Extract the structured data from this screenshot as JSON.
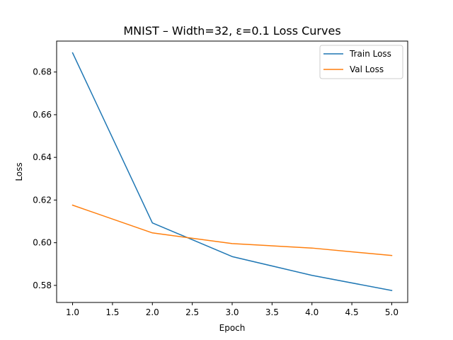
{
  "chart_data": {
    "type": "line",
    "title": "MNIST – Width=32, ε=0.1 Loss Curves",
    "xlabel": "Epoch",
    "ylabel": "Loss",
    "x": [
      1.0,
      2.0,
      3.0,
      4.0,
      5.0
    ],
    "xlim": [
      0.8,
      5.2
    ],
    "ylim": [
      0.572,
      0.6945
    ],
    "xticks": [
      1.0,
      1.5,
      2.0,
      2.5,
      3.0,
      3.5,
      4.0,
      4.5,
      5.0
    ],
    "xtick_labels": [
      "1.0",
      "1.5",
      "2.0",
      "2.5",
      "3.0",
      "3.5",
      "4.0",
      "4.5",
      "5.0"
    ],
    "yticks": [
      0.58,
      0.6,
      0.62,
      0.64,
      0.66,
      0.68
    ],
    "ytick_labels": [
      "0.58",
      "0.60",
      "0.62",
      "0.64",
      "0.66",
      "0.68"
    ],
    "grid": false,
    "legend_position": "top-right",
    "series": [
      {
        "name": "Train Loss",
        "color": "#1f77b4",
        "values": [
          0.689,
          0.6093,
          0.5935,
          0.5847,
          0.5776
        ]
      },
      {
        "name": "Val Loss",
        "color": "#ff7f0e",
        "values": [
          0.6176,
          0.6046,
          0.5996,
          0.5975,
          0.594
        ]
      }
    ]
  }
}
